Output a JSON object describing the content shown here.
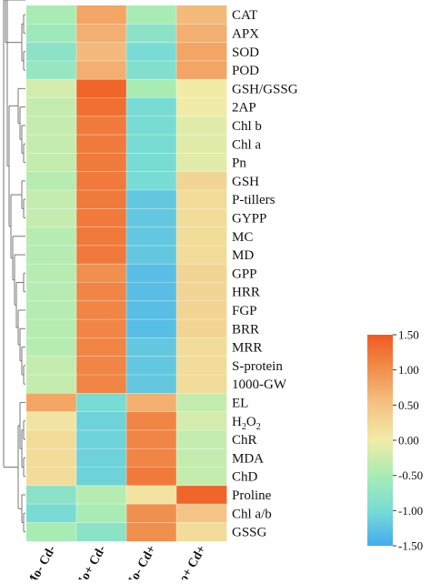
{
  "chart_data": {
    "type": "heatmap",
    "title": "",
    "xlabel": "",
    "ylabel": "",
    "columns": [
      "Mo- Cd-",
      "Mo+ Cd-",
      "Mo- Cd+",
      "Mo+ Cd+"
    ],
    "rows": [
      {
        "label": "CAT",
        "values": [
          -0.5,
          0.8,
          -0.5,
          0.6
        ]
      },
      {
        "label": "APX",
        "values": [
          -0.6,
          0.7,
          -0.8,
          0.7
        ]
      },
      {
        "label": "SOD",
        "values": [
          -0.8,
          0.6,
          -1.0,
          0.8
        ]
      },
      {
        "label": "POD",
        "values": [
          -0.7,
          0.7,
          -0.9,
          0.8
        ]
      },
      {
        "label": "GSH/GSSG",
        "values": [
          -0.2,
          1.4,
          -0.5,
          0.0
        ]
      },
      {
        "label": "2AP",
        "values": [
          -0.3,
          1.3,
          -1.0,
          0.0
        ]
      },
      {
        "label": "Chl b",
        "values": [
          -0.3,
          1.2,
          -1.0,
          -0.1
        ]
      },
      {
        "label": "Chl a",
        "values": [
          -0.3,
          1.2,
          -1.0,
          -0.1
        ]
      },
      {
        "label": "Pn",
        "values": [
          -0.3,
          1.2,
          -1.0,
          -0.1
        ]
      },
      {
        "label": "GSH",
        "values": [
          -0.4,
          1.2,
          -1.0,
          0.3
        ]
      },
      {
        "label": "P-tillers",
        "values": [
          -0.3,
          1.2,
          -1.2,
          0.2
        ]
      },
      {
        "label": "GYPP",
        "values": [
          -0.3,
          1.2,
          -1.2,
          0.2
        ]
      },
      {
        "label": "MC",
        "values": [
          -0.4,
          1.2,
          -1.2,
          0.2
        ]
      },
      {
        "label": "MD",
        "values": [
          -0.4,
          1.2,
          -1.2,
          0.2
        ]
      },
      {
        "label": "GPP",
        "values": [
          -0.4,
          1.0,
          -1.3,
          0.3
        ]
      },
      {
        "label": "HRR",
        "values": [
          -0.4,
          1.1,
          -1.3,
          0.3
        ]
      },
      {
        "label": "FGP",
        "values": [
          -0.4,
          1.1,
          -1.3,
          0.3
        ]
      },
      {
        "label": "BRR",
        "values": [
          -0.4,
          1.1,
          -1.3,
          0.3
        ]
      },
      {
        "label": "MRR",
        "values": [
          -0.4,
          1.1,
          -1.2,
          0.2
        ]
      },
      {
        "label": "S-protein",
        "values": [
          -0.3,
          1.1,
          -1.2,
          0.2
        ]
      },
      {
        "label": "1000-GW",
        "values": [
          -0.3,
          1.1,
          -1.2,
          0.2
        ]
      },
      {
        "label": "EL",
        "values": [
          0.8,
          -1.0,
          0.7,
          -0.3
        ]
      },
      {
        "label": "H2O2",
        "label_parts": [
          "H",
          "2",
          "O",
          "2"
        ],
        "values": [
          0.1,
          -1.1,
          1.1,
          -0.2
        ]
      },
      {
        "label": "ChR",
        "values": [
          0.2,
          -1.1,
          1.1,
          -0.3
        ]
      },
      {
        "label": "MDA",
        "values": [
          0.2,
          -1.1,
          1.1,
          -0.3
        ]
      },
      {
        "label": "ChD",
        "values": [
          0.2,
          -1.1,
          1.2,
          -0.3
        ]
      },
      {
        "label": "Proline",
        "values": [
          -0.8,
          -0.4,
          0.1,
          1.4
        ]
      },
      {
        "label": "Chl a/b",
        "values": [
          -1.0,
          -0.5,
          1.0,
          0.5
        ]
      },
      {
        "label": "GSSG",
        "values": [
          -0.5,
          -0.8,
          1.0,
          0.2
        ]
      }
    ],
    "color_scale": {
      "min": -1.5,
      "max": 1.5,
      "stops": [
        "#44aaf0",
        "#78dcd4",
        "#a8ecb4",
        "#f0eca8",
        "#f4c486",
        "#f0904e",
        "#f05a20"
      ],
      "tick_labels": [
        "1.50",
        "1.00",
        "0.50",
        "0.00",
        "-0.50",
        "-1.00",
        "-1.50"
      ]
    },
    "dendrogram": {
      "type": "row",
      "tree": [
        [
          [
            [
              0,
              1
            ],
            [
              2,
              3
            ]
          ],
          [
            [
              [
                4,
                [
                  5,
                  [
                    6,
                    [
                      7,
                      8
                    ]
                  ]
                ]
              ],
              [
                [
                  9,
                  [
                    10,
                    11
                  ]
                ],
                [
                  12,
                  [
                    13,
                    [
                      [
                        14,
                        15
                      ],
                      [
                        16,
                        [
                          17,
                          [
                            18,
                            [
                              19,
                              20
                            ]
                          ]
                        ]
                      ]
                    ]
                  ]
                ]
              ]
            ]
          ]
        ],
        [
          [
            21,
            [
              [
                22,
                23
              ],
              [
                24,
                25
              ]
            ]
          ],
          [
            26,
            [
              27,
              28
            ]
          ]
        ]
      ]
    }
  }
}
